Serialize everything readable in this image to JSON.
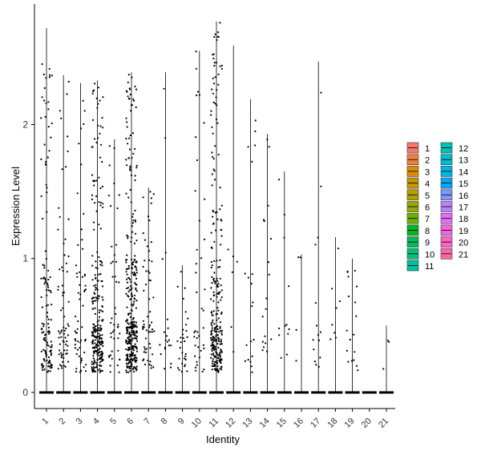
{
  "chart_data": {
    "type": "violin-jitter",
    "xlabel": "Identity",
    "ylabel": "Expression Level",
    "categories": [
      "1",
      "2",
      "3",
      "4",
      "5",
      "6",
      "7",
      "8",
      "9",
      "10",
      "11",
      "12",
      "13",
      "14",
      "15",
      "16",
      "17",
      "18",
      "19",
      "20",
      "21"
    ],
    "yticks": [
      0,
      1,
      2
    ],
    "ylim": [
      -0.12,
      2.9
    ],
    "max_values": [
      2.72,
      2.37,
      2.31,
      2.33,
      1.89,
      2.39,
      1.53,
      2.39,
      0.95,
      2.55,
      2.77,
      2.59,
      2.19,
      1.93,
      1.65,
      1.03,
      2.47,
      1.16,
      1.0,
      0.0,
      0.5
    ],
    "point_counts": [
      130,
      70,
      60,
      260,
      45,
      330,
      60,
      20,
      30,
      40,
      260,
      6,
      20,
      18,
      12,
      4,
      15,
      8,
      18,
      0,
      3
    ],
    "zero_dense_note": "",
    "legend": {
      "position": "right",
      "columns": 2,
      "entries": [
        {
          "label": "1",
          "color": "#F8766D"
        },
        {
          "label": "2",
          "color": "#EC8239"
        },
        {
          "label": "3",
          "color": "#DB8E00"
        },
        {
          "label": "4",
          "color": "#C79800"
        },
        {
          "label": "5",
          "color": "#AFA100"
        },
        {
          "label": "6",
          "color": "#93AA00"
        },
        {
          "label": "7",
          "color": "#6BB100"
        },
        {
          "label": "8",
          "color": "#00B81F"
        },
        {
          "label": "9",
          "color": "#00BC59"
        },
        {
          "label": "10",
          "color": "#00BF7D"
        },
        {
          "label": "11",
          "color": "#00C19C"
        },
        {
          "label": "12",
          "color": "#00C0B7"
        },
        {
          "label": "13",
          "color": "#00BDD0"
        },
        {
          "label": "14",
          "color": "#00B5E4"
        },
        {
          "label": "15",
          "color": "#00A9FF"
        },
        {
          "label": "16",
          "color": "#7F96FF"
        },
        {
          "label": "17",
          "color": "#B983FF"
        },
        {
          "label": "18",
          "color": "#E26EF7"
        },
        {
          "label": "19",
          "color": "#F663E1"
        },
        {
          "label": "20",
          "color": "#FF61C5"
        },
        {
          "label": "21",
          "color": "#FF67A4"
        }
      ]
    },
    "grid": false
  }
}
